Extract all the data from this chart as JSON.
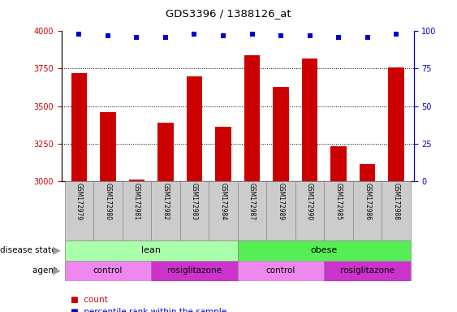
{
  "title": "GDS3396 / 1388126_at",
  "samples": [
    "GSM172979",
    "GSM172980",
    "GSM172981",
    "GSM172982",
    "GSM172983",
    "GSM172984",
    "GSM172987",
    "GSM172989",
    "GSM172990",
    "GSM172985",
    "GSM172986",
    "GSM172988"
  ],
  "bar_values": [
    3720,
    3460,
    3010,
    3390,
    3700,
    3360,
    3840,
    3630,
    3820,
    3230,
    3110,
    3760
  ],
  "percentile_values": [
    98,
    97,
    96,
    96,
    98,
    97,
    98,
    97,
    97,
    96,
    96,
    98
  ],
  "bar_color": "#cc0000",
  "dot_color": "#0000cc",
  "ylim_left": [
    3000,
    4000
  ],
  "ylim_right": [
    0,
    100
  ],
  "yticks_left": [
    3000,
    3250,
    3500,
    3750,
    4000
  ],
  "yticks_right": [
    0,
    25,
    50,
    75,
    100
  ],
  "grid_values": [
    3250,
    3500,
    3750
  ],
  "lean_color": "#aaffaa",
  "obese_color": "#55ee55",
  "control_color": "#ee88ee",
  "rosi_color": "#cc33cc",
  "tick_label_bg": "#cccccc",
  "bar_color_dark": "#cc0000",
  "dot_color_dark": "#0000cc",
  "legend_count_label": "count",
  "legend_percentile_label": "percentile rank within the sample",
  "disease_state_label": "disease state",
  "agent_label": "agent",
  "bg_color": "#ffffff"
}
